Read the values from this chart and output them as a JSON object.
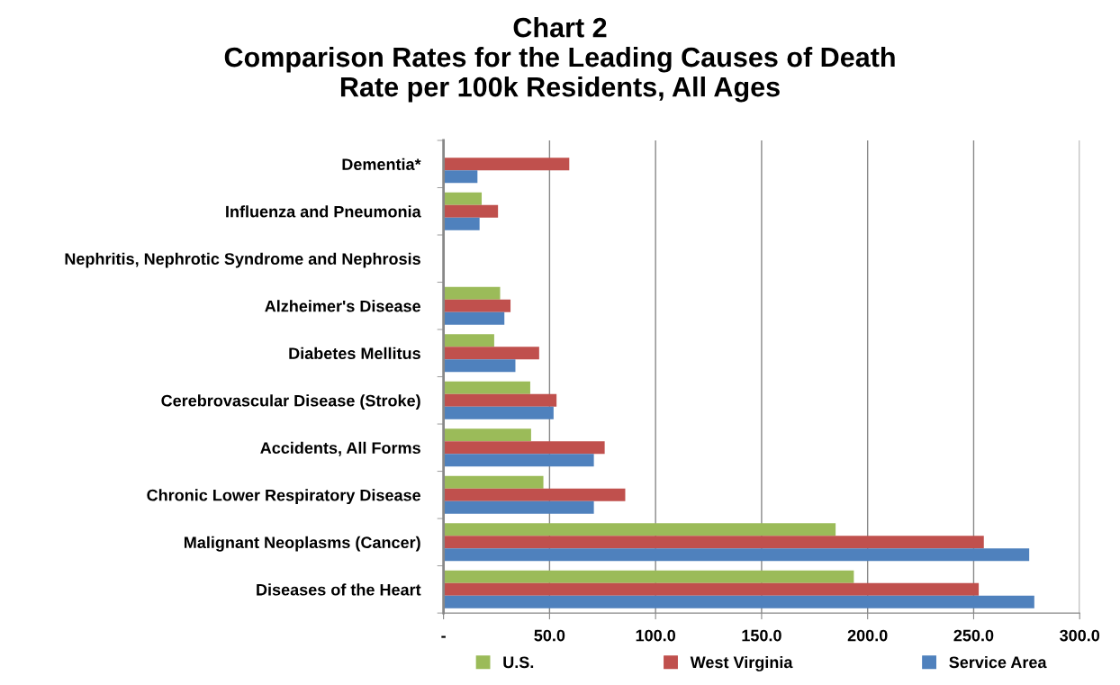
{
  "chart_data": {
    "type": "bar",
    "orientation": "horizontal",
    "title": "Chart 2\nComparison Rates for the Leading Causes of Death\nRate per 100k Residents, All Ages",
    "categories": [
      "Dementia*",
      "Influenza and Pneumonia",
      "Nephritis, Nephrotic Syndrome and Nephrosis",
      "Alzheimer's Disease",
      "Diabetes Mellitus",
      "Cerebrovascular Disease (Stroke)",
      "Accidents, All Forms",
      "Chronic Lower Respiratory Disease",
      "Malignant Neoplasms (Cancer)",
      "Diseases of the Heart"
    ],
    "series": [
      {
        "name": "U.S.",
        "color": "#9bbb59",
        "values": [
          null,
          18.0,
          null,
          26.7,
          23.9,
          40.9,
          41.3,
          47.1,
          184.9,
          193.5
        ]
      },
      {
        "name": "West Virginia",
        "color": "#c0504d",
        "values": [
          59.3,
          25.7,
          null,
          31.6,
          45.1,
          53.3,
          76.0,
          85.7,
          254.8,
          252.4
        ]
      },
      {
        "name": "Service Area",
        "color": "#4f81bd",
        "values": [
          16.0,
          17.0,
          null,
          28.7,
          33.9,
          51.9,
          70.9,
          70.9,
          276.2,
          278.6
        ]
      }
    ],
    "xlim": [
      0,
      300
    ],
    "xticks": [
      {
        "value": 0,
        "label": "-"
      },
      {
        "value": 50,
        "label": "50.0"
      },
      {
        "value": 100,
        "label": "100.0"
      },
      {
        "value": 150,
        "label": "150.0"
      },
      {
        "value": 200,
        "label": "200.0"
      },
      {
        "value": 250,
        "label": "250.0"
      },
      {
        "value": 300,
        "label": "300.0"
      }
    ],
    "grid": "x",
    "legend": "bottom"
  }
}
